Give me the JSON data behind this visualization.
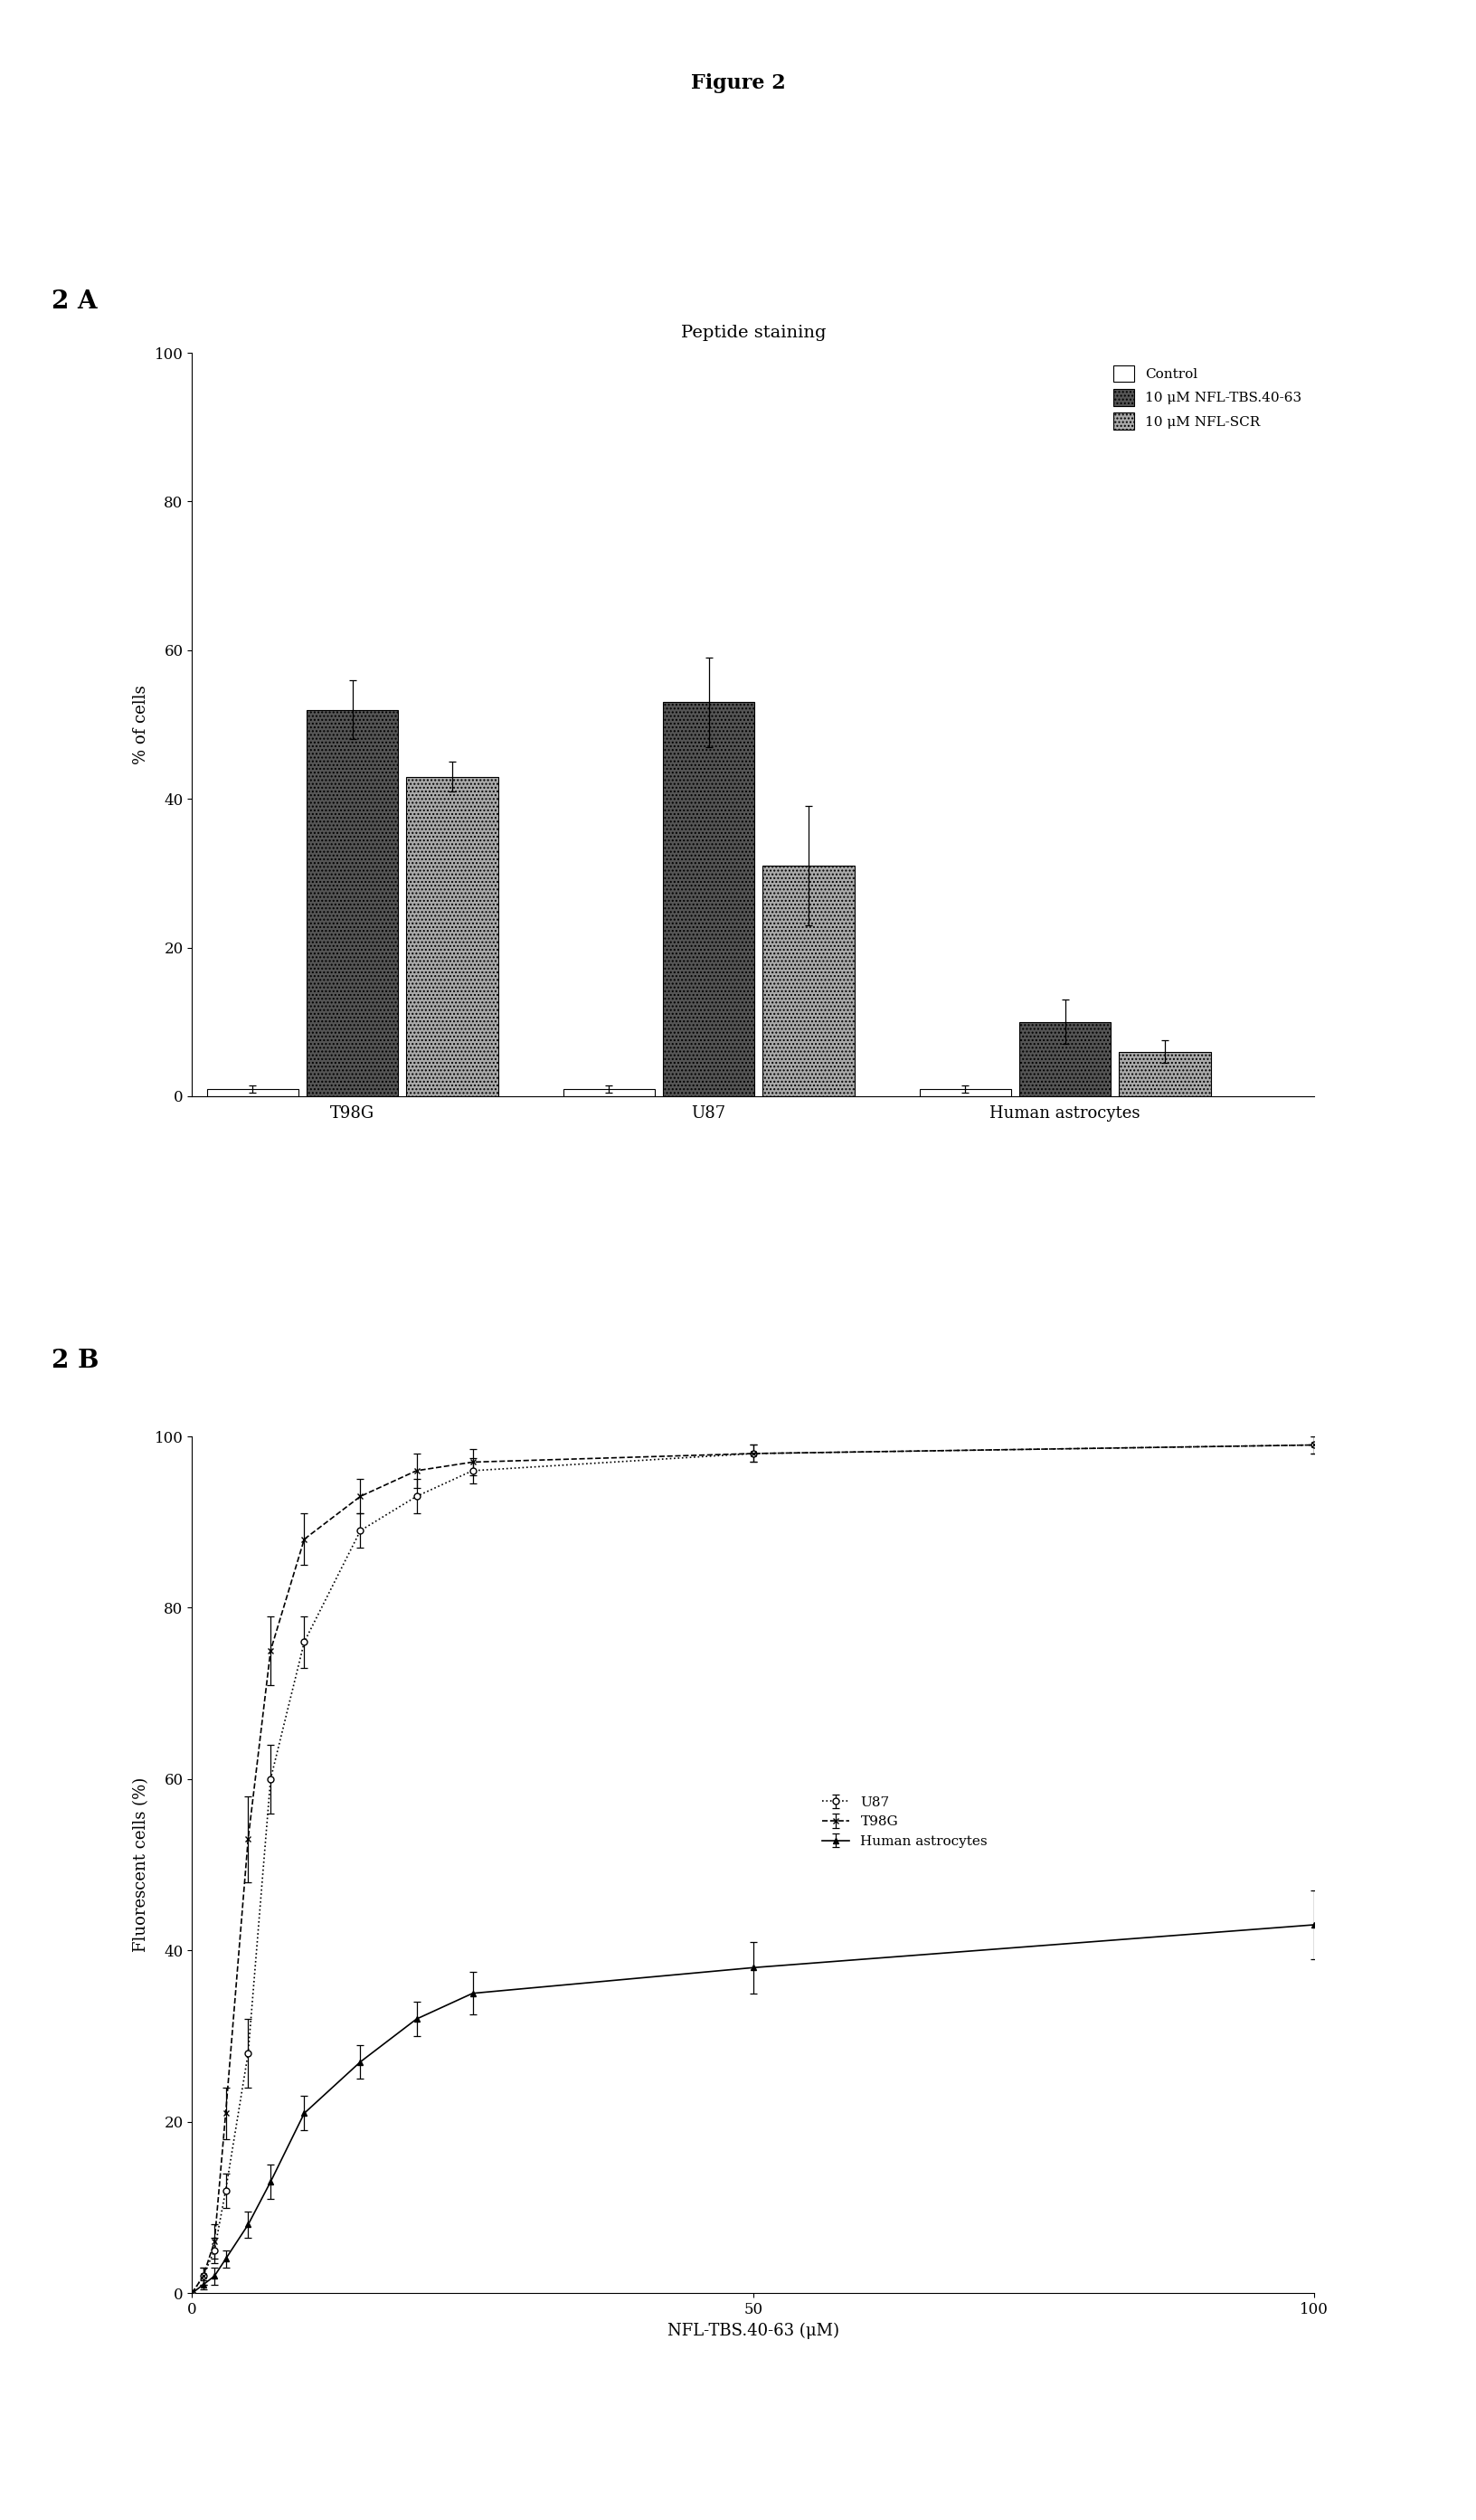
{
  "figure_title": "Figure 2",
  "panel_a_label": "2 A",
  "panel_b_label": "2 B",
  "panel_a_subtitle": "Peptide staining",
  "panel_a_ylabel": "% of cells",
  "panel_a_ylim": [
    0,
    100
  ],
  "panel_a_yticks": [
    0,
    20,
    40,
    60,
    80,
    100
  ],
  "panel_a_groups": [
    "T98G",
    "U87",
    "Human astrocytes"
  ],
  "panel_a_legend": [
    "Control",
    "10 μM NFL-TBS.40-63",
    "10 μM NFL-SCR"
  ],
  "panel_a_values": {
    "Control": [
      1,
      1,
      1
    ],
    "NFL_TBS": [
      52,
      53,
      10
    ],
    "NFL_SCR": [
      43,
      31,
      6
    ]
  },
  "panel_a_errors": {
    "Control": [
      0.5,
      0.5,
      0.5
    ],
    "NFL_TBS": [
      4,
      6,
      3
    ],
    "NFL_SCR": [
      2,
      8,
      1.5
    ]
  },
  "panel_b_ylabel": "Fluorescent cells (%)",
  "panel_b_xlabel": "NFL-TBS.40-63 (μM)",
  "panel_b_ylim": [
    0,
    100
  ],
  "panel_b_yticks": [
    0,
    20,
    40,
    60,
    80,
    100
  ],
  "panel_b_xlim": [
    0,
    100
  ],
  "panel_b_xticks": [
    0,
    50,
    100
  ],
  "panel_b_series": {
    "U87": {
      "x": [
        0,
        1,
        2,
        3,
        5,
        7,
        10,
        15,
        20,
        25,
        50,
        100
      ],
      "y": [
        0,
        2,
        5,
        12,
        28,
        60,
        76,
        89,
        93,
        96,
        98,
        99
      ],
      "yerr": [
        0,
        1,
        1.5,
        2,
        4,
        4,
        3,
        2,
        2,
        1.5,
        1,
        1
      ],
      "marker": "o",
      "label": "U87"
    },
    "T98G": {
      "x": [
        0,
        1,
        2,
        3,
        5,
        7,
        10,
        15,
        20,
        25,
        50,
        100
      ],
      "y": [
        0,
        2,
        6,
        21,
        53,
        75,
        88,
        93,
        96,
        97,
        98,
        99
      ],
      "yerr": [
        0,
        1,
        2,
        3,
        5,
        4,
        3,
        2,
        2,
        1.5,
        1,
        1
      ],
      "marker": "x",
      "label": "T98G"
    },
    "Human_astrocytes": {
      "x": [
        0,
        1,
        2,
        3,
        5,
        7,
        10,
        15,
        20,
        25,
        50,
        100
      ],
      "y": [
        0,
        1,
        2,
        4,
        8,
        13,
        21,
        27,
        32,
        35,
        38,
        43
      ],
      "yerr": [
        0,
        0.5,
        1,
        1,
        1.5,
        2,
        2,
        2,
        2,
        2.5,
        3,
        4
      ],
      "marker": "^",
      "label": "Human astrocytes"
    }
  }
}
